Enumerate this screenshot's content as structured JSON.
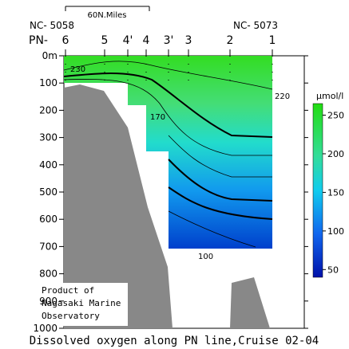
{
  "station_ids": {
    "left": "NC- 5058",
    "right": "NC- 5073"
  },
  "scale_bar": "60N.Miles",
  "station_prefix": "PN-",
  "stations": [
    "6",
    "5",
    "4'",
    "4",
    "3'",
    "3",
    "2",
    "1"
  ],
  "depth_axis": {
    "lim": [
      0,
      1000
    ],
    "ticks": [
      {
        "value": 0,
        "label": "0m"
      },
      100,
      200,
      300,
      400,
      500,
      600,
      700,
      800,
      900,
      1000
    ]
  },
  "colorbar": {
    "unit": "μmol/l",
    "lim": [
      40,
      265
    ],
    "ticks": [
      50,
      100,
      150,
      200,
      250
    ]
  },
  "contour_labels": [
    "230",
    "220",
    "170",
    "100"
  ],
  "credit": [
    "Product of",
    "Nagasaki Marine",
    "Observatory"
  ],
  "caption": "Dissolved oxygen along PN line,Cruise 02-04"
}
